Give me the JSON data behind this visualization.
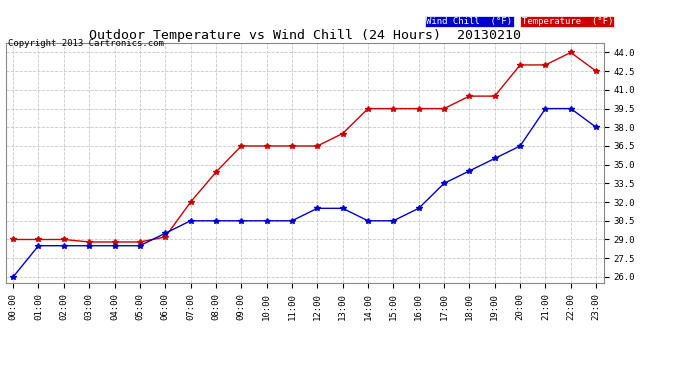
{
  "title": "Outdoor Temperature vs Wind Chill (24 Hours)  20130210",
  "copyright": "Copyright 2013 Cartronics.com",
  "background_color": "#ffffff",
  "plot_bg_color": "#ffffff",
  "grid_color": "#c8c8c8",
  "hours": [
    0,
    1,
    2,
    3,
    4,
    5,
    6,
    7,
    8,
    9,
    10,
    11,
    12,
    13,
    14,
    15,
    16,
    17,
    18,
    19,
    20,
    21,
    22,
    23
  ],
  "temperature": [
    29.0,
    29.0,
    29.0,
    28.8,
    28.8,
    28.8,
    29.2,
    32.0,
    34.4,
    36.5,
    36.5,
    36.5,
    36.5,
    37.5,
    39.5,
    39.5,
    39.5,
    39.5,
    40.5,
    40.5,
    43.0,
    43.0,
    44.0,
    42.5
  ],
  "wind_chill": [
    26.0,
    28.5,
    28.5,
    28.5,
    28.5,
    28.5,
    29.5,
    30.5,
    30.5,
    30.5,
    30.5,
    30.5,
    31.5,
    31.5,
    30.5,
    30.5,
    31.5,
    33.5,
    34.5,
    35.5,
    36.5,
    39.5,
    39.5,
    38.0
  ],
  "temp_color": "#cc0000",
  "wind_color": "#0000cc",
  "ylim_min": 25.5,
  "ylim_max": 44.75,
  "yticks": [
    26.0,
    27.5,
    29.0,
    30.5,
    32.0,
    33.5,
    35.0,
    36.5,
    38.0,
    39.5,
    41.0,
    42.5,
    44.0
  ],
  "legend_wind_bg": "#0000cc",
  "legend_temp_bg": "#cc0000",
  "legend_wind_text": "Wind Chill  (°F)",
  "legend_temp_text": "Temperature  (°F)"
}
